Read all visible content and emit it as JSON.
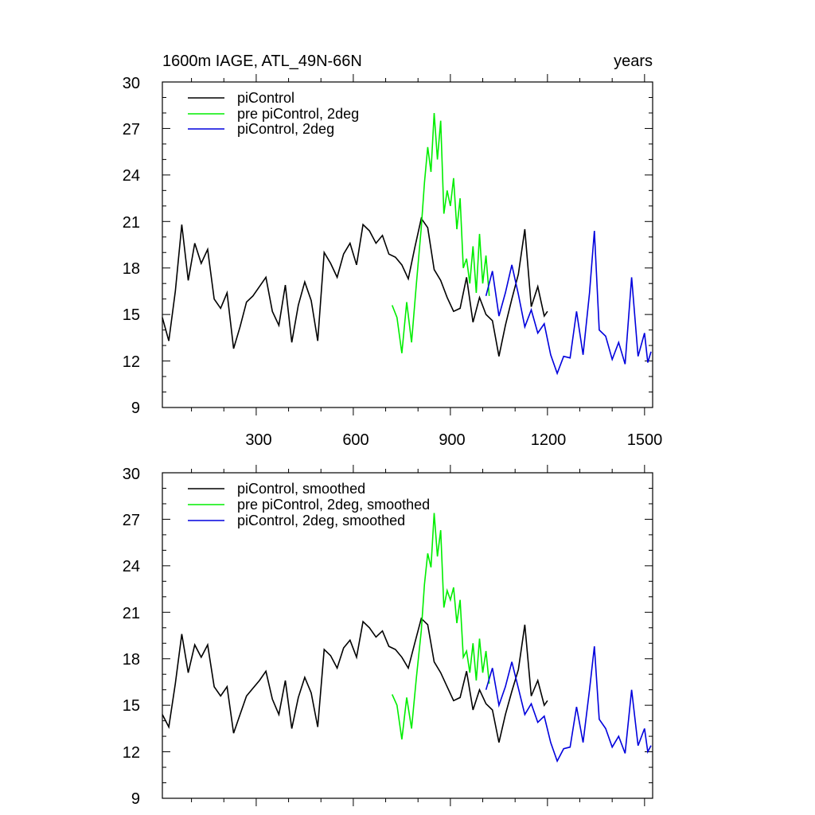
{
  "chart_data": [
    {
      "type": "line",
      "title_left": "1600m IAGE, ATL_49N-66N",
      "title_right": "years",
      "xlabel": "",
      "ylabel": "",
      "xlim": [
        10,
        1525
      ],
      "ylim": [
        9,
        30
      ],
      "xticks": [
        300,
        600,
        900,
        1200,
        1500
      ],
      "xtick_labels": [
        "300",
        "600",
        "900",
        "1200",
        "1500"
      ],
      "yticks": [
        9,
        12,
        15,
        18,
        21,
        24,
        27,
        30
      ],
      "ytick_labels": [
        "9",
        "12",
        "15",
        "18",
        "21",
        "24",
        "27",
        "30"
      ],
      "legend_position": "top-left",
      "series": [
        {
          "name": "piControl",
          "color": "#000000",
          "x": [
            10,
            30,
            50,
            70,
            90,
            110,
            130,
            150,
            170,
            190,
            210,
            230,
            250,
            270,
            290,
            310,
            330,
            350,
            370,
            390,
            410,
            430,
            450,
            470,
            490,
            510,
            530,
            550,
            570,
            590,
            610,
            630,
            650,
            670,
            690,
            710,
            730,
            750,
            770,
            790,
            810,
            830,
            850,
            870,
            890,
            910,
            930,
            950,
            970,
            990,
            1010,
            1030,
            1050,
            1070,
            1090,
            1110,
            1130,
            1150,
            1170,
            1190,
            1200
          ],
          "values": [
            14.8,
            13.3,
            16.5,
            20.8,
            17.2,
            19.6,
            18.3,
            19.2,
            16.0,
            15.4,
            16.4,
            12.8,
            14.2,
            15.8,
            16.2,
            16.8,
            17.4,
            15.2,
            14.3,
            16.9,
            13.2,
            15.6,
            17.1,
            15.9,
            13.3,
            19.0,
            18.3,
            17.4,
            18.9,
            19.6,
            18.2,
            20.8,
            20.4,
            19.6,
            20.1,
            18.9,
            18.7,
            18.2,
            17.3,
            19.3,
            21.2,
            20.6,
            17.9,
            17.2,
            16.1,
            15.2,
            15.4,
            17.4,
            14.5,
            16.1,
            15.0,
            14.6,
            12.3,
            14.3,
            16.0,
            17.6,
            20.5,
            15.5,
            16.8,
            14.9,
            15.2
          ]
        },
        {
          "name": "pre piControl, 2deg",
          "color": "#00ee00",
          "x": [
            720,
            735,
            750,
            765,
            780,
            795,
            810,
            820,
            830,
            840,
            850,
            860,
            870,
            880,
            890,
            900,
            910,
            920,
            930,
            940,
            950,
            960,
            970,
            980,
            990,
            1000,
            1010,
            1020
          ],
          "values": [
            15.6,
            14.8,
            12.5,
            15.8,
            13.2,
            17.0,
            20.6,
            23.5,
            25.8,
            24.2,
            28.0,
            25.0,
            27.5,
            21.5,
            23.0,
            22.0,
            23.8,
            20.5,
            22.5,
            18.0,
            18.6,
            17.0,
            19.4,
            16.4,
            20.2,
            17.0,
            18.8,
            16.2
          ]
        },
        {
          "name": "piControl, 2deg",
          "color": "#0000dd",
          "x": [
            1010,
            1030,
            1050,
            1070,
            1090,
            1110,
            1130,
            1150,
            1170,
            1190,
            1210,
            1230,
            1250,
            1270,
            1290,
            1310,
            1330,
            1345,
            1360,
            1380,
            1400,
            1420,
            1440,
            1460,
            1480,
            1500,
            1510,
            1520
          ],
          "values": [
            16.2,
            17.8,
            14.9,
            16.4,
            18.2,
            16.3,
            14.2,
            15.3,
            13.8,
            14.4,
            12.4,
            11.2,
            12.3,
            12.2,
            15.2,
            12.4,
            16.4,
            20.4,
            14.0,
            13.6,
            12.1,
            13.2,
            11.8,
            17.4,
            12.3,
            13.8,
            11.9,
            12.6
          ]
        }
      ]
    },
    {
      "type": "line",
      "xlabel": "",
      "ylabel": "",
      "xlim": [
        10,
        1525
      ],
      "ylim": [
        9,
        30
      ],
      "xticks": [
        300,
        600,
        900,
        1200,
        1500
      ],
      "yticks": [
        9,
        12,
        15,
        18,
        21,
        24,
        27,
        30
      ],
      "ytick_labels": [
        "9",
        "12",
        "15",
        "18",
        "21",
        "24",
        "27",
        "30"
      ],
      "legend_position": "top-left",
      "series": [
        {
          "name": "piControl, smoothed",
          "color": "#000000",
          "x": [
            10,
            30,
            50,
            70,
            90,
            110,
            130,
            150,
            170,
            190,
            210,
            230,
            250,
            270,
            290,
            310,
            330,
            350,
            370,
            390,
            410,
            430,
            450,
            470,
            490,
            510,
            530,
            550,
            570,
            590,
            610,
            630,
            650,
            670,
            690,
            710,
            730,
            750,
            770,
            790,
            810,
            830,
            850,
            870,
            890,
            910,
            930,
            950,
            970,
            990,
            1010,
            1030,
            1050,
            1070,
            1090,
            1110,
            1130,
            1150,
            1170,
            1190,
            1200
          ],
          "values": [
            14.4,
            13.6,
            16.4,
            19.6,
            17.1,
            18.9,
            18.1,
            18.9,
            16.2,
            15.6,
            16.2,
            13.2,
            14.4,
            15.6,
            16.1,
            16.6,
            17.2,
            15.4,
            14.4,
            16.6,
            13.5,
            15.5,
            16.8,
            15.8,
            13.6,
            18.6,
            18.2,
            17.4,
            18.7,
            19.2,
            18.1,
            20.4,
            20.0,
            19.4,
            19.8,
            18.8,
            18.6,
            18.1,
            17.4,
            19.0,
            20.6,
            20.2,
            17.8,
            17.1,
            16.2,
            15.3,
            15.5,
            17.2,
            14.7,
            16.0,
            15.1,
            14.7,
            12.6,
            14.4,
            15.9,
            17.3,
            20.2,
            15.6,
            16.6,
            15.0,
            15.3
          ]
        },
        {
          "name": "pre piControl, 2deg, smoothed",
          "color": "#00ee00",
          "x": [
            720,
            735,
            750,
            765,
            780,
            795,
            810,
            820,
            830,
            840,
            850,
            860,
            870,
            880,
            890,
            900,
            910,
            920,
            930,
            940,
            950,
            960,
            970,
            980,
            990,
            1000,
            1010,
            1020
          ],
          "values": [
            15.7,
            15.0,
            12.8,
            15.5,
            13.5,
            16.8,
            19.8,
            22.8,
            24.8,
            23.9,
            27.4,
            24.6,
            26.3,
            21.3,
            22.4,
            21.8,
            22.6,
            20.3,
            21.8,
            18.1,
            18.5,
            17.1,
            19.0,
            16.6,
            19.3,
            17.1,
            18.5,
            16.4
          ]
        },
        {
          "name": "piControl, 2deg, smoothed",
          "color": "#0000dd",
          "x": [
            1010,
            1030,
            1050,
            1070,
            1090,
            1110,
            1130,
            1150,
            1170,
            1190,
            1210,
            1230,
            1250,
            1270,
            1290,
            1310,
            1330,
            1345,
            1360,
            1380,
            1400,
            1420,
            1440,
            1460,
            1480,
            1500,
            1510,
            1520
          ],
          "values": [
            16.0,
            17.4,
            15.0,
            16.2,
            17.8,
            16.1,
            14.4,
            15.1,
            13.9,
            14.3,
            12.6,
            11.4,
            12.2,
            12.3,
            14.9,
            12.6,
            16.0,
            18.8,
            14.1,
            13.5,
            12.3,
            13.0,
            11.9,
            16.0,
            12.4,
            13.5,
            12.0,
            12.4
          ]
        }
      ]
    }
  ]
}
